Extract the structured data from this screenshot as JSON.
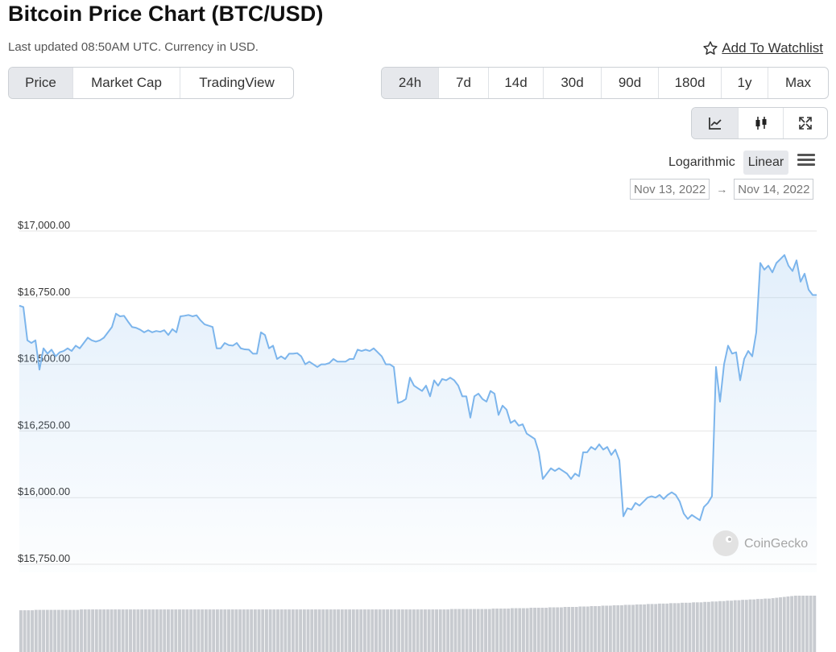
{
  "header": {
    "title": "Bitcoin Price Chart (BTC/USD)",
    "subtitle": "Last updated 08:50AM UTC. Currency in USD.",
    "watchlist_label": "Add To Watchlist"
  },
  "view_tabs": [
    "Price",
    "Market Cap",
    "TradingView"
  ],
  "view_active": "Price",
  "range_tabs": [
    "24h",
    "7d",
    "14d",
    "30d",
    "90d",
    "180d",
    "1y",
    "Max"
  ],
  "range_active": "24h",
  "tools": [
    {
      "icon": "line-chart-icon",
      "active": true
    },
    {
      "icon": "candlestick-icon",
      "active": false
    },
    {
      "icon": "expand-icon",
      "active": false
    }
  ],
  "scale": {
    "options": [
      "Logarithmic",
      "Linear"
    ],
    "active": "Linear"
  },
  "date_range": {
    "from": "Nov 13, 2022",
    "arrow": "→",
    "to": "Nov 14, 2022"
  },
  "watermark": "CoinGecko",
  "colors": {
    "line": "#7cb5ec",
    "volume": "#c8cbd0",
    "accent_bg": "#e6e8ec"
  },
  "chart_data": {
    "type": "area",
    "ylim": [
      15750,
      17000
    ],
    "yticks": [
      17000,
      16750,
      16500,
      16250,
      16000,
      15750
    ],
    "ytick_labels": [
      "$17,000.00",
      "$16,750.00",
      "$16,500.00",
      "$16,250.00",
      "$16,000.00",
      "$15,750.00"
    ],
    "grid": true,
    "series": [
      {
        "values": [
          16720,
          16715,
          16590,
          16580,
          16590,
          16480,
          16560,
          16540,
          16555,
          16530,
          16545,
          16550,
          16560,
          16550,
          16570,
          16560,
          16580,
          16600,
          16590,
          16585,
          16590,
          16600,
          16620,
          16640,
          16690,
          16680,
          16682,
          16660,
          16640,
          16637,
          16630,
          16620,
          16628,
          16620,
          16625,
          16622,
          16628,
          16610,
          16632,
          16620,
          16680,
          16682,
          16685,
          16680,
          16684,
          16665,
          16650,
          16645,
          16640,
          16560,
          16560,
          16580,
          16572,
          16570,
          16580,
          16560,
          16556,
          16555,
          16540,
          16540,
          16620,
          16610,
          16560,
          16570,
          16520,
          16530,
          16520,
          16540,
          16540,
          16542,
          16530,
          16500,
          16510,
          16500,
          16490,
          16500,
          16500,
          16505,
          16520,
          16510,
          16510,
          16510,
          16520,
          16520,
          16555,
          16550,
          16555,
          16550,
          16560,
          16545,
          16530,
          16500,
          16500,
          16490,
          16355,
          16360,
          16370,
          16450,
          16420,
          16410,
          16400,
          16420,
          16380,
          16440,
          16420,
          16445,
          16440,
          16450,
          16440,
          16420,
          16380,
          16380,
          16300,
          16380,
          16390,
          16370,
          16360,
          16400,
          16390,
          16310,
          16345,
          16330,
          16280,
          16290,
          16270,
          16275,
          16240,
          16230,
          16220,
          16170,
          16070,
          16090,
          16110,
          16100,
          16110,
          16100,
          16090,
          16070,
          16090,
          16080,
          16170,
          16170,
          16190,
          16180,
          16200,
          16180,
          16190,
          16160,
          16180,
          16140,
          15930,
          15960,
          15955,
          15980,
          15970,
          15985,
          16000,
          16005,
          16000,
          16010,
          15995,
          16010,
          16020,
          16010,
          15985,
          15940,
          15920,
          15935,
          15925,
          15915,
          15965,
          15980,
          16005,
          16490,
          16360,
          16500,
          16570,
          16540,
          16545,
          16440,
          16520,
          16550,
          16530,
          16620,
          16880,
          16855,
          16870,
          16845,
          16880,
          16895,
          16910,
          16870,
          16850,
          16890,
          16810,
          16840,
          16780,
          16760,
          16760
        ]
      }
    ],
    "volume": [
      100,
      100,
      100,
      100,
      101,
      101,
      101,
      101,
      101,
      101,
      101,
      101,
      101,
      101,
      101,
      101,
      102,
      102,
      102,
      102,
      102,
      102,
      102,
      102,
      102,
      102,
      102,
      102,
      102,
      102,
      102,
      102,
      102,
      102,
      102,
      102,
      102,
      102,
      102,
      102,
      102,
      102,
      102,
      102,
      102,
      102,
      102,
      102,
      102,
      102,
      102,
      102,
      102,
      102,
      102,
      102,
      102,
      102,
      102,
      102,
      102,
      102,
      102,
      102,
      102,
      102,
      102,
      102,
      102,
      102,
      102,
      102,
      102,
      102,
      102,
      102,
      102,
      102,
      102,
      102,
      102,
      102,
      102,
      102,
      102,
      102,
      102,
      102,
      102,
      102,
      102,
      102,
      102,
      102,
      102,
      102,
      102,
      102,
      102,
      102,
      102,
      102,
      102,
      102,
      102,
      102,
      102,
      102,
      102,
      102,
      102,
      102,
      102,
      102,
      103,
      103,
      103,
      103,
      103,
      103,
      103,
      103,
      103,
      103,
      103,
      104,
      104,
      104,
      104,
      104,
      105,
      105,
      105,
      105,
      105,
      106,
      106,
      106,
      106,
      106,
      107,
      107,
      107,
      107,
      108,
      108,
      108,
      108,
      109,
      109,
      109,
      110,
      110,
      110,
      111,
      111,
      111,
      112,
      112,
      112,
      113,
      113,
      113,
      114,
      114,
      114,
      115,
      115,
      115,
      116,
      116,
      116,
      117,
      117,
      117,
      118,
      118,
      118,
      119,
      119,
      119,
      120,
      120,
      121,
      121,
      122,
      122,
      123,
      123,
      124,
      124,
      125,
      125,
      126,
      126,
      127,
      127,
      128,
      128,
      129,
      130,
      131,
      132,
      133,
      134,
      135,
      135,
      135,
      135,
      135,
      135
    ]
  }
}
